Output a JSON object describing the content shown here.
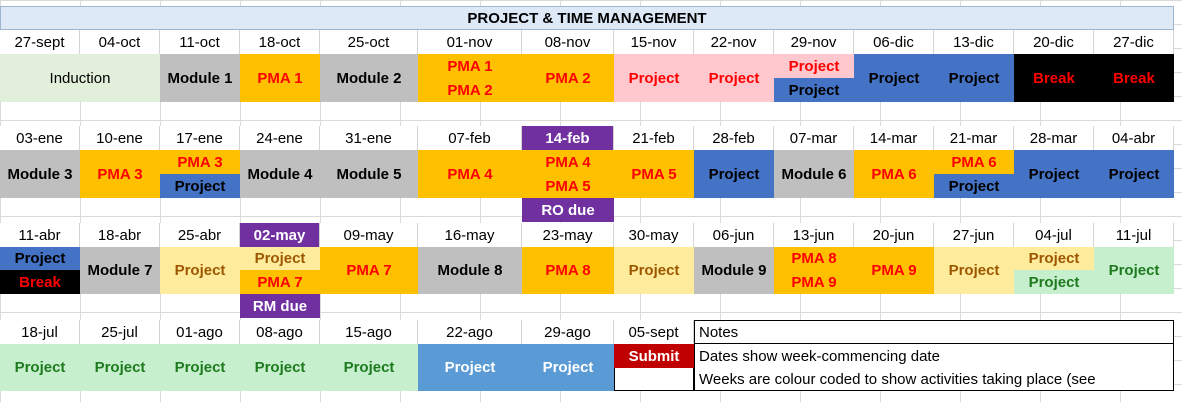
{
  "title": "PROJECT & TIME MANAGEMENT",
  "colors": {
    "induction": "#e2efda",
    "module": "#bfbfbf",
    "pma": "#ffc000",
    "project_pink": "#ffc7ce",
    "project_blue": "#4472c4",
    "break": "#000000",
    "due": "#7030a0",
    "project_yellow": "#ffeb9c",
    "project_green": "#c6efce",
    "project_lightblue": "#5b9bd5",
    "submit": "#c00000"
  },
  "row1": {
    "dates": [
      "27-sept",
      "04-oct",
      "11-oct",
      "18-oct",
      "25-oct",
      "01-nov",
      "08-nov",
      "15-nov",
      "22-nov",
      "29-nov",
      "06-dic",
      "13-dic",
      "20-dic",
      "27-dic"
    ],
    "induction": "Induction",
    "module1": "Module 1",
    "pma1": "PMA 1",
    "module2": "Module 2",
    "nov01_a": "PMA 1",
    "nov01_b": "PMA 2",
    "pma2": "PMA 2",
    "nov15": "Project",
    "nov22": "Project",
    "nov29_a": "Project",
    "nov29_b": "Project",
    "dic06": "Project",
    "dic13": "Project",
    "dic20": "Break",
    "dic27": "Break"
  },
  "row2": {
    "dates": [
      "03-ene",
      "10-ene",
      "17-ene",
      "24-ene",
      "31-ene",
      "07-feb",
      "14-feb",
      "21-feb",
      "28-feb",
      "07-mar",
      "14-mar",
      "21-mar",
      "28-mar",
      "04-abr"
    ],
    "module3": "Module 3",
    "pma3": "PMA 3",
    "ene17_a": "PMA 3",
    "ene17_b": "Project",
    "module4": "Module 4",
    "module5": "Module 5",
    "pma4": "PMA 4",
    "feb14_a": "PMA 4",
    "feb14_b": "PMA 5",
    "feb14_due": "RO due",
    "pma5": "PMA 5",
    "feb28": "Project",
    "module6": "Module 6",
    "pma6": "PMA 6",
    "mar21_a": "PMA 6",
    "mar21_b": "Project",
    "mar28": "Project",
    "abr04": "Project"
  },
  "row3": {
    "dates": [
      "11-abr",
      "18-abr",
      "25-abr",
      "02-may",
      "09-may",
      "16-may",
      "23-may",
      "30-may",
      "06-jun",
      "13-jun",
      "20-jun",
      "27-jun",
      "04-jul",
      "11-jul"
    ],
    "abr11_a": "Project",
    "abr11_b": "Break",
    "module7": "Module 7",
    "abr25": "Project",
    "may02_a": "Project",
    "may02_b": "PMA 7",
    "may02_due": "RM due",
    "pma7": "PMA 7",
    "module8": "Module 8",
    "pma8": "PMA 8",
    "may30": "Project",
    "module9": "Module 9",
    "jun13_a": "PMA 8",
    "jun13_b": "PMA 9",
    "pma9": "PMA 9",
    "jun27": "Project",
    "jul04_a": "Project",
    "jul04_b": "Project",
    "jul11": "Project"
  },
  "row4": {
    "dates": [
      "18-jul",
      "25-jul",
      "01-ago",
      "08-ago",
      "15-ago",
      "22-ago",
      "29-ago",
      "05-sept"
    ],
    "jul18": "Project",
    "jul25": "Project",
    "ago01": "Project",
    "ago08": "Project",
    "ago15": "Project",
    "ago22": "Project",
    "ago29": "Project",
    "submit": "Submit"
  },
  "notes": {
    "heading": "Notes",
    "line1": "Dates show week-commencing date",
    "line2": "Weeks are colour coded to show activities taking place (see"
  }
}
